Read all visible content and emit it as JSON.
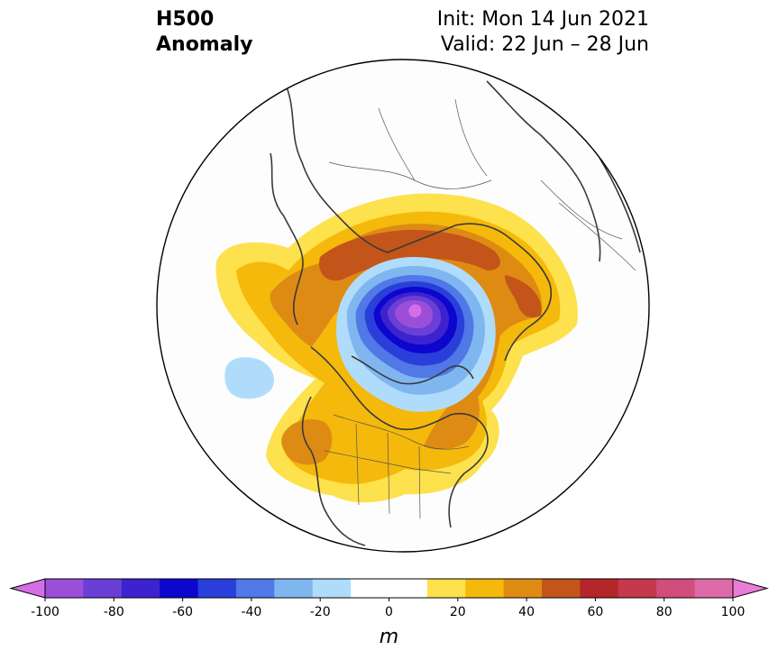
{
  "title": {
    "variable": "H500",
    "type": "Anomaly",
    "init": "Init: Mon 14 Jun 2021",
    "valid": "Valid: 22 Jun – 28 Jun"
  },
  "colorbar": {
    "units": "m",
    "ticks": [
      "-100",
      "-80",
      "-60",
      "-40",
      "-20",
      "0",
      "20",
      "40",
      "60",
      "80",
      "100"
    ],
    "colors": [
      "#d46ee8",
      "#9b4fd9",
      "#6a3fd6",
      "#3d23cf",
      "#0c06cf",
      "#2a3fd9",
      "#5078e6",
      "#80b6f0",
      "#b0dcfb",
      "#ffffff",
      "#ffffff",
      "#fde14d",
      "#f4b90b",
      "#de8b14",
      "#c3551a",
      "#b4262a",
      "#c4394d",
      "#cf4e7c",
      "#dc6aa8",
      "#e87dd8"
    ]
  },
  "map": {
    "projection": "north-polar-stereographic",
    "anomaly_regions": [
      {
        "label": "negative center over Arctic Ocean",
        "min_m": -100
      },
      {
        "label": "positive ridge over northern Eurasia/Siberia",
        "max_m": 50
      },
      {
        "label": "positive ridge over western North America",
        "max_m": 40
      },
      {
        "label": "positive ridge over eastern Canada/North Atlantic",
        "max_m": 40
      },
      {
        "label": "weak negative over North Pacific",
        "min_m": -20
      }
    ]
  }
}
